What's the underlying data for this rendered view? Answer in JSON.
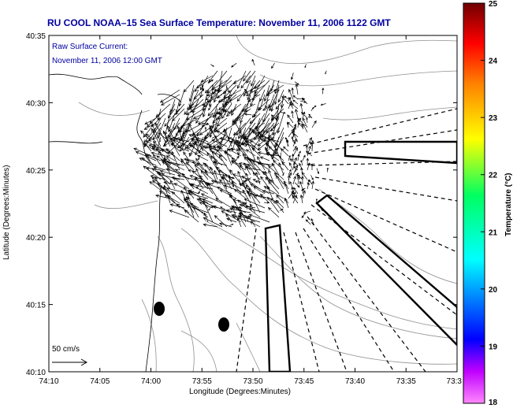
{
  "title": "RU COOL  NOAA–15  Sea Surface Temperature:  November 11, 2006 1122 GMT",
  "overlay": {
    "line1": "Raw Surface Current:",
    "line2": "November 11, 2006 12:00 GMT"
  },
  "scale_label": "50 cm/s",
  "axes": {
    "xlabel": "Longitude (Degrees:Minutes)",
    "ylabel": "Latitude (Degrees:Minutes)",
    "xticks": [
      "74:10",
      "74:05",
      "74:00",
      "73:55",
      "73:50",
      "73:45",
      "73:40",
      "73:35",
      "73:3"
    ],
    "yticks": [
      "40:35",
      "40:30",
      "40:25",
      "40:20",
      "40:15",
      "40:10"
    ]
  },
  "colorbar": {
    "label": "Temperature (°C)",
    "min": 18,
    "max": 25,
    "ticks": [
      "25",
      "24",
      "23",
      "22",
      "21",
      "20",
      "19",
      "18"
    ],
    "colors": [
      "#ff00ff",
      "#0000ff",
      "#00ffff",
      "#00ff00",
      "#ffff00",
      "#ff8000",
      "#ff0000",
      "#800000"
    ]
  },
  "colors": {
    "title": "#0000a0",
    "contour": "#909090",
    "vector": "#000000"
  }
}
